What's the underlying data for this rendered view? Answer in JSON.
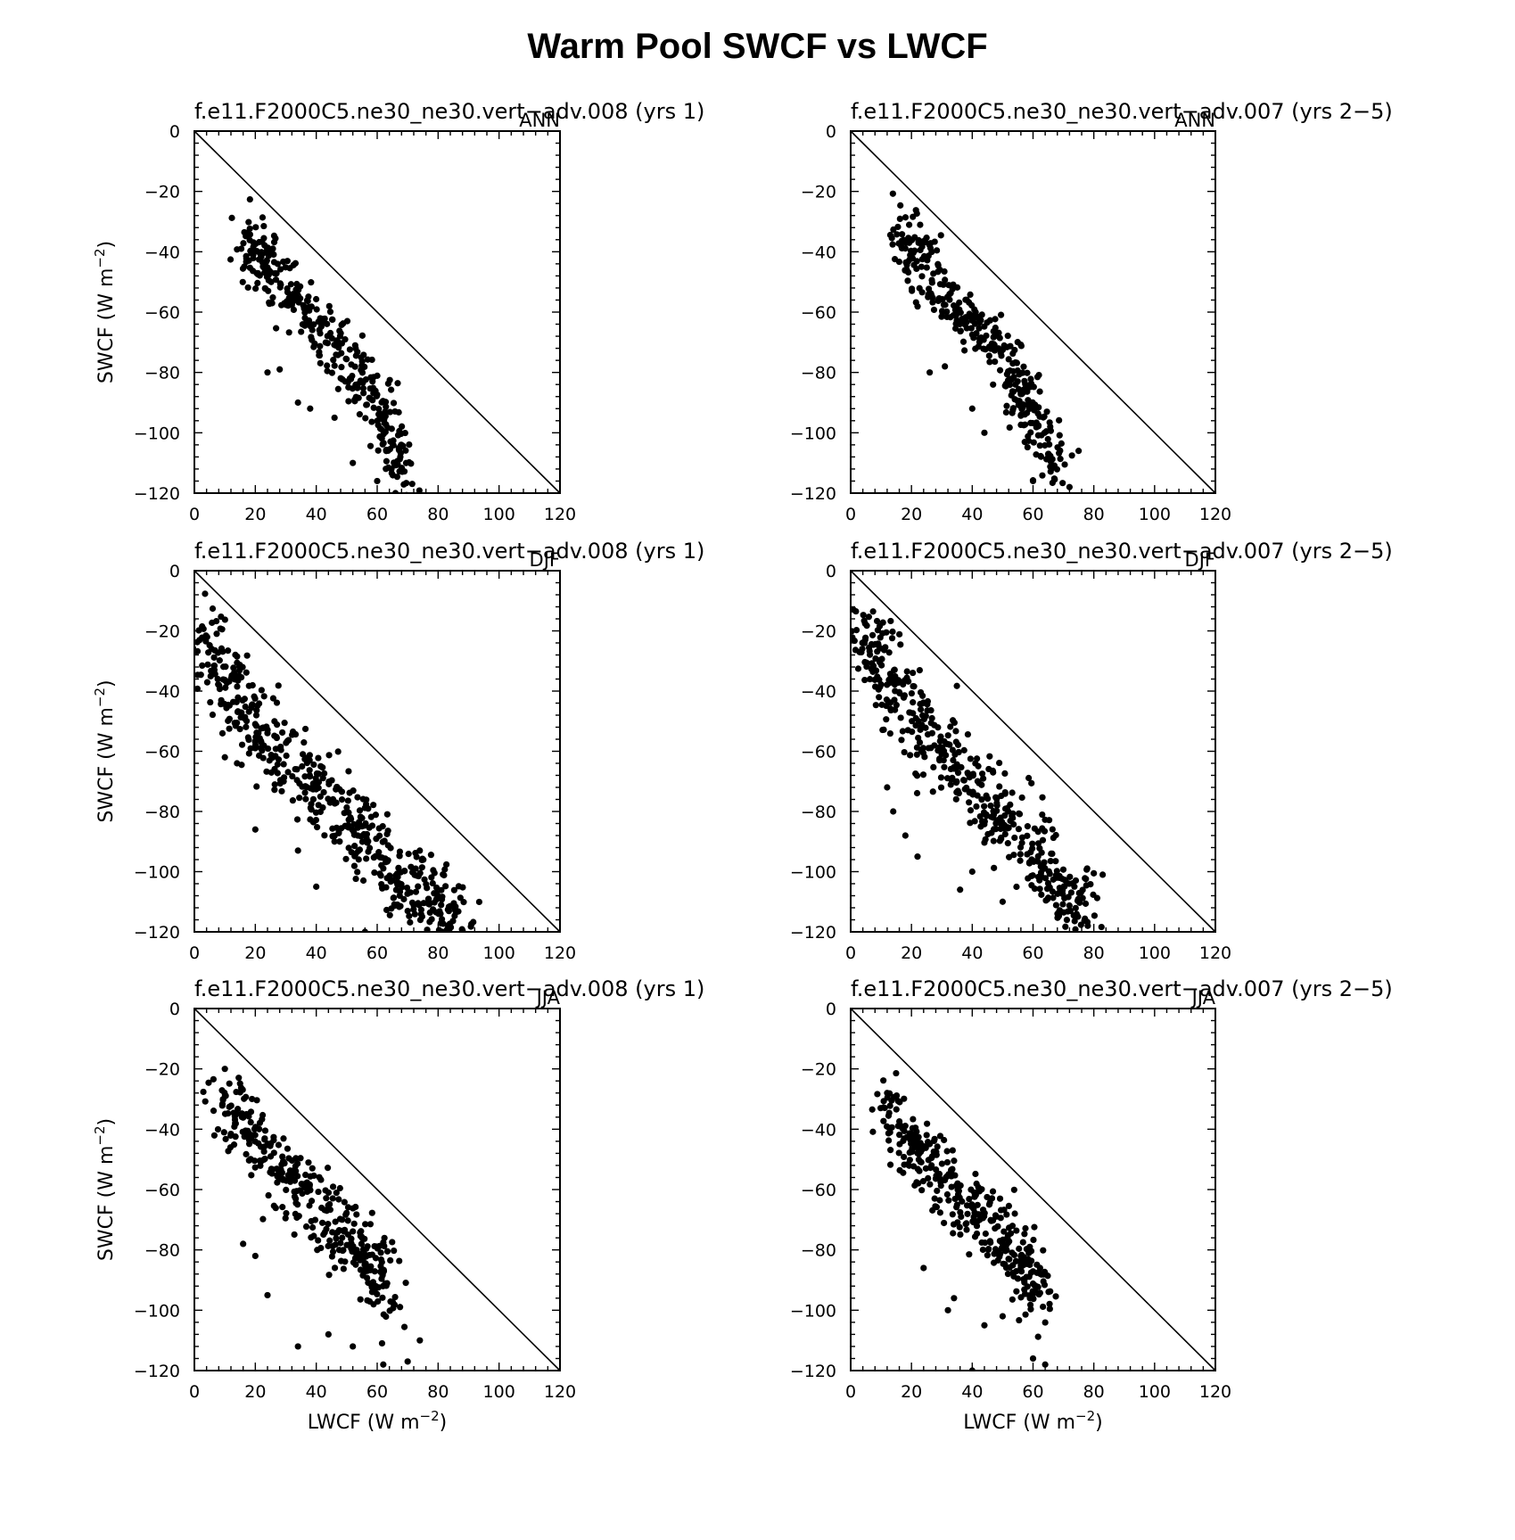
{
  "page_title": "Warm Pool SWCF vs LWCF",
  "chart_data": [
    {
      "type": "scatter",
      "title": "f.e11.F2000C5.ne30_ne30.vert-adv.008 (yrs 1)",
      "season": "ANN",
      "xlabel": "",
      "ylabel": "SWCF (W m^-2)",
      "xlim": [
        0,
        120
      ],
      "ylim": [
        -120,
        0
      ],
      "xticks": [
        "0",
        "20",
        "40",
        "60",
        "80",
        "100",
        "120"
      ],
      "yticks": [
        "0",
        "-20",
        "-40",
        "-60",
        "-80",
        "-100",
        "-120"
      ],
      "reference_line": "1:1 (SWCF = -LWCF)",
      "spread": 6,
      "points_per_segment": 50,
      "cloud_spine": [
        [
          16,
          -35
        ],
        [
          22,
          -42
        ],
        [
          30,
          -53
        ],
        [
          40,
          -64
        ],
        [
          50,
          -77
        ],
        [
          58,
          -88
        ],
        [
          64,
          -100
        ],
        [
          68,
          -115
        ]
      ],
      "outliers": [
        [
          28,
          -79
        ],
        [
          24,
          -80
        ],
        [
          34,
          -90
        ],
        [
          38,
          -92
        ],
        [
          46,
          -95
        ],
        [
          52,
          -110
        ],
        [
          60,
          -116
        ],
        [
          66,
          -120
        ]
      ]
    },
    {
      "type": "scatter",
      "title": "f.e11.F2000C5.ne30_ne30.vert-adv.007 (yrs 2-5)",
      "season": "ANN",
      "xlabel": "",
      "ylabel": "",
      "xlim": [
        0,
        120
      ],
      "ylim": [
        -120,
        0
      ],
      "xticks": [
        "0",
        "20",
        "40",
        "60",
        "80",
        "100",
        "120"
      ],
      "yticks": [
        "0",
        "-20",
        "-40",
        "-60",
        "-80",
        "-100",
        "-120"
      ],
      "reference_line": "1:1 (SWCF = -LWCF)",
      "spread": 6,
      "points_per_segment": 50,
      "cloud_spine": [
        [
          16,
          -33
        ],
        [
          22,
          -42
        ],
        [
          30,
          -53
        ],
        [
          40,
          -63
        ],
        [
          50,
          -74
        ],
        [
          56,
          -86
        ],
        [
          62,
          -100
        ],
        [
          70,
          -114
        ]
      ],
      "outliers": [
        [
          26,
          -80
        ],
        [
          31,
          -78
        ],
        [
          40,
          -92
        ],
        [
          44,
          -100
        ],
        [
          60,
          -116
        ],
        [
          66,
          -112
        ],
        [
          72,
          -118
        ],
        [
          75,
          -106
        ]
      ]
    },
    {
      "type": "scatter",
      "title": "f.e11.F2000C5.ne30_ne30.vert-adv.008 (yrs 1)",
      "season": "DJF",
      "xlabel": "",
      "ylabel": "SWCF (W m^-2)",
      "xlim": [
        0,
        120
      ],
      "ylim": [
        -120,
        0
      ],
      "xticks": [
        "0",
        "20",
        "40",
        "60",
        "80",
        "100",
        "120"
      ],
      "yticks": [
        "0",
        "-20",
        "-40",
        "-60",
        "-80",
        "-100",
        "-120"
      ],
      "reference_line": "1:1 (SWCF = -LWCF)",
      "spread": 8,
      "points_per_segment": 60,
      "cloud_spine": [
        [
          4,
          -22
        ],
        [
          10,
          -35
        ],
        [
          18,
          -50
        ],
        [
          28,
          -62
        ],
        [
          40,
          -72
        ],
        [
          52,
          -84
        ],
        [
          62,
          -96
        ],
        [
          72,
          -106
        ],
        [
          82,
          -114
        ],
        [
          88,
          -119
        ]
      ],
      "outliers": [
        [
          20,
          -86
        ],
        [
          34,
          -93
        ],
        [
          40,
          -105
        ],
        [
          46,
          -90
        ],
        [
          56,
          -120
        ],
        [
          10,
          -62
        ],
        [
          14,
          -64
        ]
      ]
    },
    {
      "type": "scatter",
      "title": "f.e11.F2000C5.ne30_ne30.vert-adv.007 (yrs 2-5)",
      "season": "DJF",
      "xlabel": "",
      "ylabel": "",
      "xlim": [
        0,
        120
      ],
      "ylim": [
        -120,
        0
      ],
      "xticks": [
        "0",
        "20",
        "40",
        "60",
        "80",
        "100",
        "120"
      ],
      "yticks": [
        "0",
        "-20",
        "-40",
        "-60",
        "-80",
        "-100",
        "-120"
      ],
      "reference_line": "1:1 (SWCF = -LWCF)",
      "spread": 8,
      "points_per_segment": 60,
      "cloud_spine": [
        [
          3,
          -18
        ],
        [
          10,
          -30
        ],
        [
          18,
          -45
        ],
        [
          28,
          -58
        ],
        [
          40,
          -70
        ],
        [
          50,
          -82
        ],
        [
          60,
          -94
        ],
        [
          70,
          -104
        ],
        [
          76,
          -112
        ]
      ],
      "outliers": [
        [
          12,
          -72
        ],
        [
          14,
          -80
        ],
        [
          18,
          -88
        ],
        [
          22,
          -95
        ],
        [
          36,
          -106
        ],
        [
          40,
          -100
        ],
        [
          50,
          -110
        ],
        [
          78,
          -118
        ]
      ]
    },
    {
      "type": "scatter",
      "title": "f.e11.F2000C5.ne30_ne30.vert-adv.008 (yrs 1)",
      "season": "JJA",
      "xlabel": "LWCF (W m^-2)",
      "ylabel": "SWCF (W m^-2)",
      "xlim": [
        0,
        120
      ],
      "ylim": [
        -120,
        0
      ],
      "xticks": [
        "0",
        "20",
        "40",
        "60",
        "80",
        "100",
        "120"
      ],
      "yticks": [
        "0",
        "-20",
        "-40",
        "-60",
        "-80",
        "-100",
        "-120"
      ],
      "reference_line": "1:1 (SWCF = -LWCF)",
      "spread": 7,
      "points_per_segment": 50,
      "cloud_spine": [
        [
          9,
          -28
        ],
        [
          16,
          -38
        ],
        [
          26,
          -50
        ],
        [
          34,
          -58
        ],
        [
          44,
          -68
        ],
        [
          52,
          -76
        ],
        [
          58,
          -86
        ],
        [
          64,
          -96
        ]
      ],
      "outliers": [
        [
          10,
          -20
        ],
        [
          16,
          -78
        ],
        [
          20,
          -82
        ],
        [
          24,
          -95
        ],
        [
          34,
          -112
        ],
        [
          44,
          -108
        ],
        [
          52,
          -112
        ],
        [
          62,
          -118
        ],
        [
          70,
          -117
        ],
        [
          74,
          -110
        ]
      ]
    },
    {
      "type": "scatter",
      "title": "f.e11.F2000C5.ne30_ne30.vert-adv.007 (yrs 2-5)",
      "season": "JJA",
      "xlabel": "LWCF (W m^-2)",
      "ylabel": "",
      "xlim": [
        0,
        120
      ],
      "ylim": [
        -120,
        0
      ],
      "xticks": [
        "0",
        "20",
        "40",
        "60",
        "80",
        "100",
        "120"
      ],
      "yticks": [
        "0",
        "-20",
        "-40",
        "-60",
        "-80",
        "-100",
        "-120"
      ],
      "reference_line": "1:1 (SWCF = -LWCF)",
      "spread": 7,
      "points_per_segment": 50,
      "cloud_spine": [
        [
          12,
          -32
        ],
        [
          18,
          -42
        ],
        [
          26,
          -52
        ],
        [
          34,
          -60
        ],
        [
          44,
          -70
        ],
        [
          52,
          -78
        ],
        [
          58,
          -86
        ],
        [
          64,
          -98
        ]
      ],
      "outliers": [
        [
          12,
          -28
        ],
        [
          24,
          -86
        ],
        [
          32,
          -100
        ],
        [
          40,
          -120
        ],
        [
          44,
          -105
        ],
        [
          50,
          -102
        ],
        [
          60,
          -116
        ],
        [
          64,
          -118
        ],
        [
          34,
          -96
        ]
      ]
    }
  ]
}
